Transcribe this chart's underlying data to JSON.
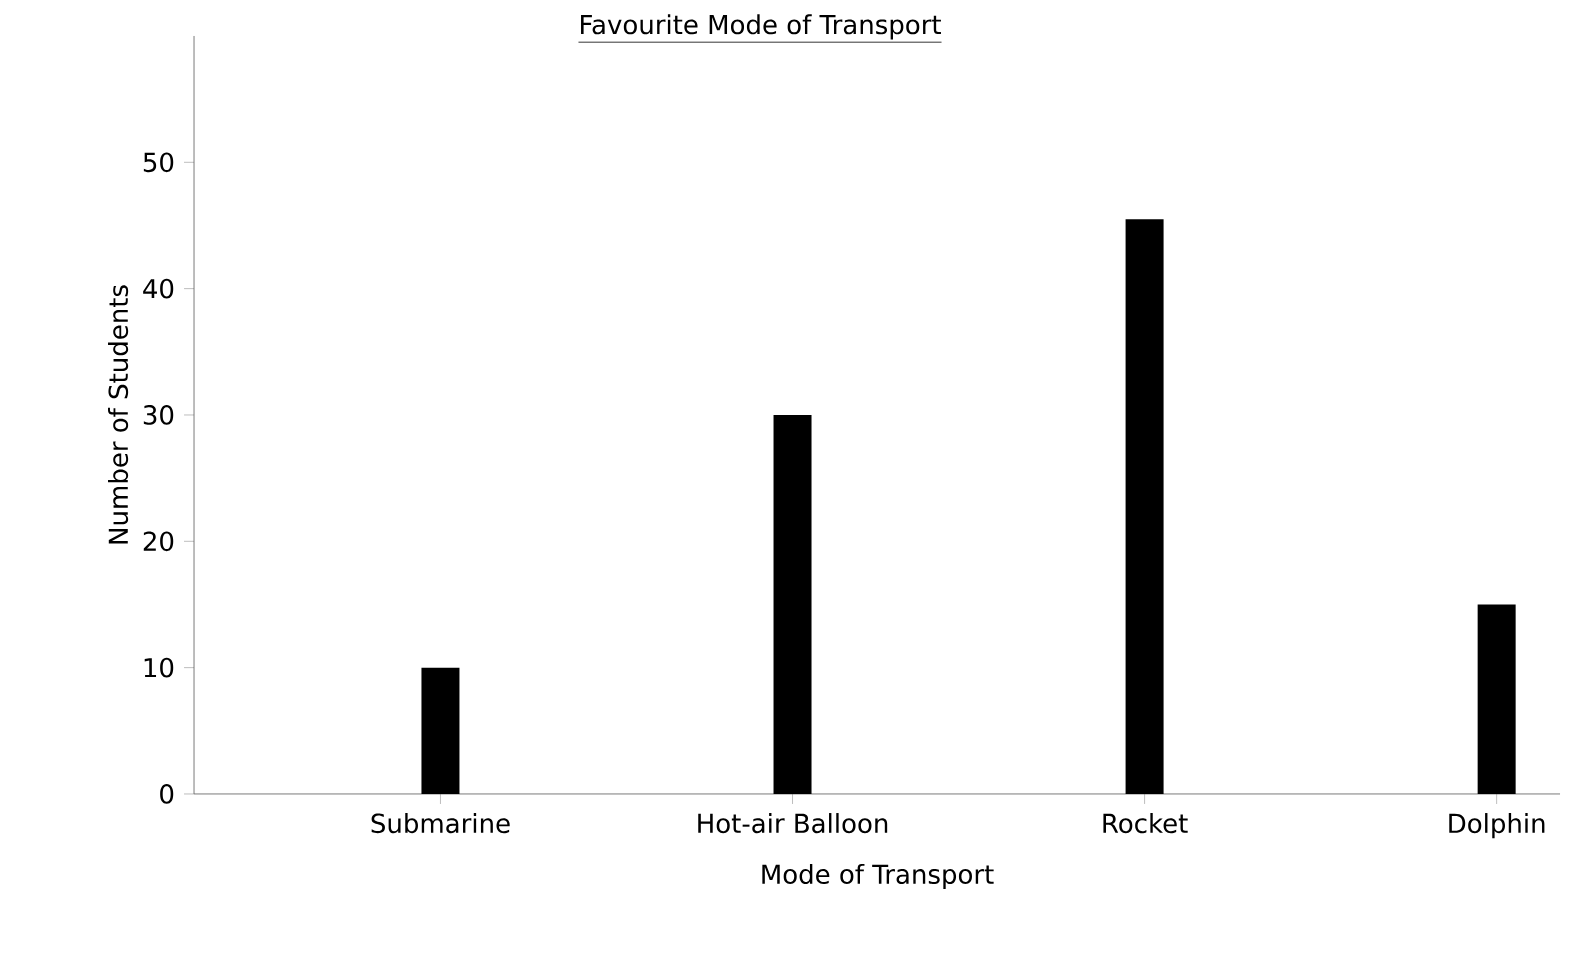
{
  "chart_data": {
    "type": "bar",
    "title": "Favourite Mode of Transport",
    "xlabel": "Mode of Transport",
    "ylabel": "Number of Students",
    "categories": [
      "Submarine",
      "Hot-air Balloon",
      "Rocket",
      "Dolphin"
    ],
    "values": [
      10,
      30,
      45.5,
      15
    ],
    "color": "#000000",
    "ylim": [
      0,
      60
    ],
    "yticks": [
      0,
      10,
      20,
      30,
      40,
      50
    ],
    "grid": false
  }
}
